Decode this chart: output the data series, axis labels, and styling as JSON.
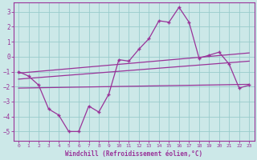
{
  "xlabel": "Windchill (Refroidissement éolien,°C)",
  "xlim": [
    -0.5,
    23.5
  ],
  "ylim": [
    -5.6,
    3.6
  ],
  "yticks": [
    -5,
    -4,
    -3,
    -2,
    -1,
    0,
    1,
    2,
    3
  ],
  "xticks": [
    0,
    1,
    2,
    3,
    4,
    5,
    6,
    7,
    8,
    9,
    10,
    11,
    12,
    13,
    14,
    15,
    16,
    17,
    18,
    19,
    20,
    21,
    22,
    23
  ],
  "background_color": "#cce8e8",
  "line_color": "#993399",
  "grid_color": "#99cccc",
  "main_data_x": [
    0,
    1,
    2,
    3,
    4,
    5,
    6,
    7,
    8,
    9,
    10,
    11,
    12,
    13,
    14,
    15,
    16,
    17,
    18,
    19,
    20,
    21,
    22,
    23
  ],
  "main_data_y": [
    -1.0,
    -1.3,
    -1.9,
    -3.5,
    -3.9,
    -5.0,
    -5.0,
    -3.3,
    -3.7,
    -2.5,
    -0.2,
    -0.3,
    0.5,
    1.2,
    2.4,
    2.3,
    3.3,
    2.3,
    -0.1,
    0.1,
    0.3,
    -0.5,
    -2.1,
    -1.9
  ],
  "reg_line1_x": [
    0,
    23
  ],
  "reg_line1_y": [
    -1.1,
    0.25
  ],
  "reg_line2_x": [
    0,
    23
  ],
  "reg_line2_y": [
    -1.5,
    -0.3
  ],
  "reg_line3_x": [
    0,
    23
  ],
  "reg_line3_y": [
    -2.1,
    -1.85
  ]
}
